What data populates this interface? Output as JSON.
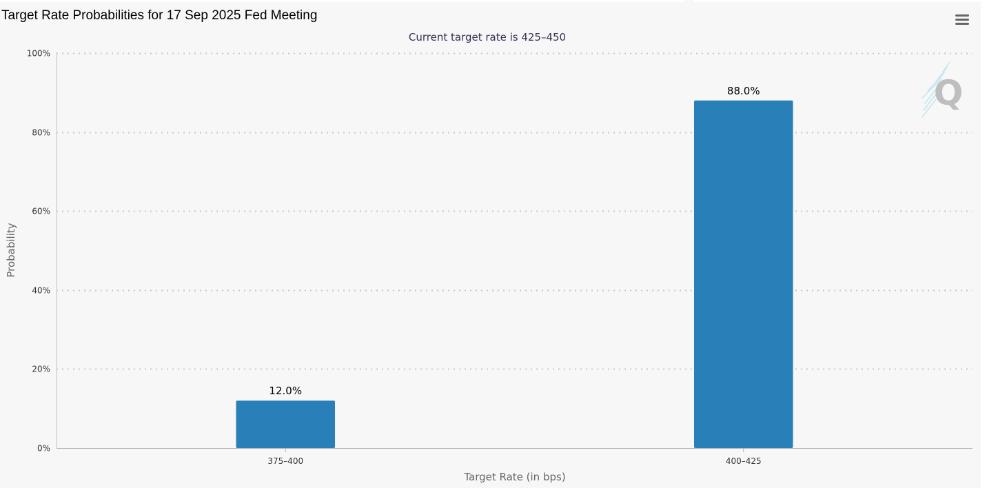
{
  "header": {
    "title": "Target Rate Probabilities for 17 Sep 2025 Fed Meeting",
    "menu_icon": "hamburger-menu-icon",
    "watermark_icon": "quikstrike-q-logo-icon"
  },
  "colors": {
    "bar": "#2980b9",
    "subtitle": "#333355",
    "axis_text": "#333333",
    "axis_title": "#666666",
    "grid": "#c8c8c8",
    "background": "#f7f7f7"
  },
  "chart_data": {
    "type": "bar",
    "title": "Target Rate Probabilities for 17 Sep 2025 Fed Meeting",
    "subtitle": "Current target rate is 425–450",
    "xlabel": "Target Rate (in bps)",
    "ylabel": "Probability",
    "categories": [
      "375–400",
      "400–425"
    ],
    "values": [
      12.0,
      88.0
    ],
    "data_labels": [
      "12.0%",
      "88.0%"
    ],
    "ylim": [
      0,
      100
    ],
    "y_ticks": [
      0,
      20,
      40,
      60,
      80,
      100
    ],
    "y_tick_labels": [
      "0%",
      "20%",
      "40%",
      "60%",
      "80%",
      "100%"
    ],
    "grid": true,
    "grid_style": "dotted",
    "legend": "none"
  }
}
